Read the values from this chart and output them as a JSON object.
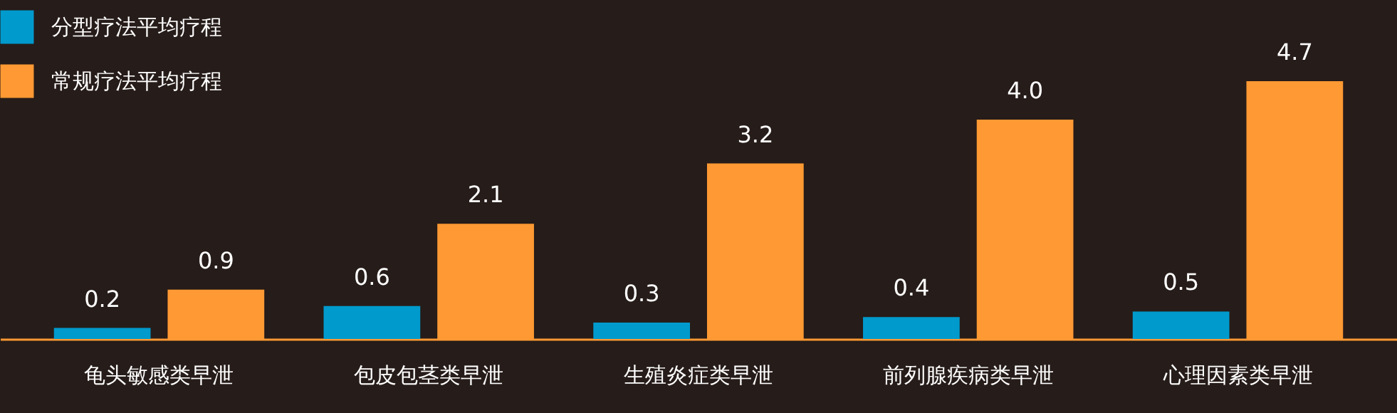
{
  "chart_data": {
    "type": "bar",
    "categories": [
      "龟头敏感类早泄",
      "包皮包茎类早泄",
      "生殖炎症类早泄",
      "前列腺疾病类早泄",
      "心理因素类早泄"
    ],
    "series": [
      {
        "name": "分型疗法平均疗程",
        "color": "#009acd",
        "values": [
          0.2,
          0.6,
          0.3,
          0.4,
          0.5
        ],
        "value_labels": [
          "0.2",
          "0.6",
          "0.3",
          "0.4",
          "0.5"
        ]
      },
      {
        "name": "常规疗法平均疗程",
        "color": "#ff9933",
        "values": [
          0.9,
          2.1,
          3.2,
          4.0,
          4.7
        ],
        "value_labels": [
          "0.9",
          "2.1",
          "3.2",
          "4.0",
          "4.7"
        ]
      }
    ],
    "legend": "top left",
    "tick_labels": "x"
  }
}
